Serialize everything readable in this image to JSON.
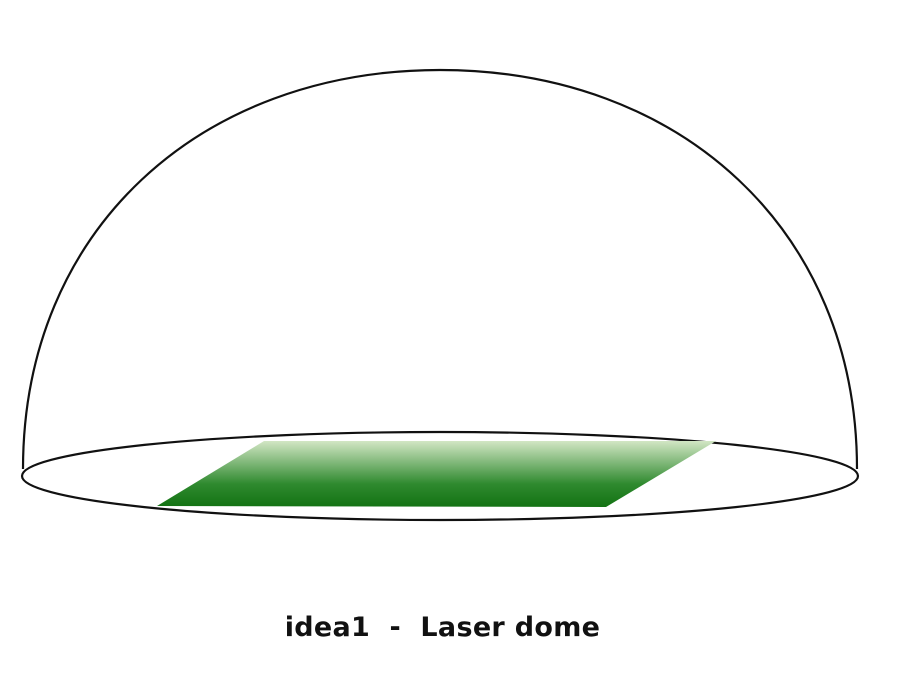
{
  "caption": "idea1  -  Laser dome",
  "colors": {
    "dome_stroke": "#111111",
    "laser_dark": "#137313",
    "laser_light": "#d2e6c4"
  }
}
